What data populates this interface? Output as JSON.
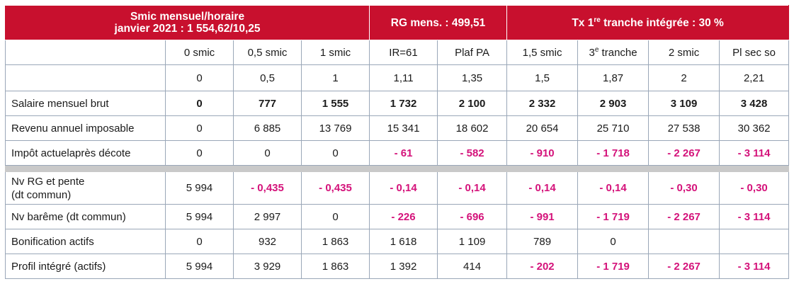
{
  "header": {
    "title_line1": "Smic mensuel/horaire",
    "title_line2": "janvier 2021 : 1 554,62/10,25",
    "rg": "RG mens. : 499,51",
    "tx_prefix": "Tx 1",
    "tx_sup": "re",
    "tx_suffix": " tranche intégrée : 30 %"
  },
  "columns": {
    "c1": "0 smic",
    "c2": "0,5 smic",
    "c3": "1 smic",
    "c4": "IR=61",
    "c5": "Plaf PA",
    "c6": "1,5 smic",
    "c7_num": "3",
    "c7_sup": "e",
    "c7_rest": " tranche",
    "c8": "2 smic",
    "c9": "Pl sec so"
  },
  "ratios": [
    "0",
    "0,5",
    "1",
    "1,11",
    "1,35",
    "1,5",
    "1,87",
    "2",
    "2,21"
  ],
  "rows": [
    {
      "label": "Salaire mensuel brut",
      "values": [
        "0",
        "777",
        "1 555",
        "1 732",
        "2 100",
        "2 332",
        "2 903",
        "3 109",
        "3 428"
      ]
    },
    {
      "label": "Revenu annuel imposable",
      "values": [
        "0",
        "6 885",
        "13 769",
        "15 341",
        "18 602",
        "20 654",
        "25 710",
        "27 538",
        "30 362"
      ]
    },
    {
      "label": "Impôt actuelaprès décote",
      "values": [
        "0",
        "0",
        "0",
        "- 61",
        "- 582",
        "- 910",
        "- 1 718",
        "- 2 267",
        "- 3 114"
      ]
    },
    {
      "label_line1": "Nv RG et pente",
      "label_line2": "(dt commun)",
      "values": [
        "5 994",
        "- 0,435",
        "- 0,435",
        "- 0,14",
        "- 0,14",
        "- 0,14",
        "- 0,14",
        "- 0,30",
        "- 0,30"
      ]
    },
    {
      "label": "Nv barême (dt commun)",
      "values": [
        "5 994",
        "2 997",
        "0",
        "- 226",
        "- 696",
        "- 991",
        "- 1 719",
        "- 2 267",
        "- 3 114"
      ]
    },
    {
      "label": "Bonification actifs",
      "values": [
        "0",
        "932",
        "1 863",
        "1 618",
        "1 109",
        "789",
        "0",
        "",
        ""
      ]
    },
    {
      "label": "Profil intégré (actifs)",
      "values": [
        "5 994",
        "3 929",
        "1 863",
        "1 392",
        "414",
        "- 202",
        "- 1 719",
        "- 2 267",
        "- 3 114"
      ]
    }
  ],
  "colors": {
    "header_bg": "#c8102e",
    "negative": "#d4127a",
    "separator": "#c9c9c9",
    "grid": "#9aa7b8"
  }
}
